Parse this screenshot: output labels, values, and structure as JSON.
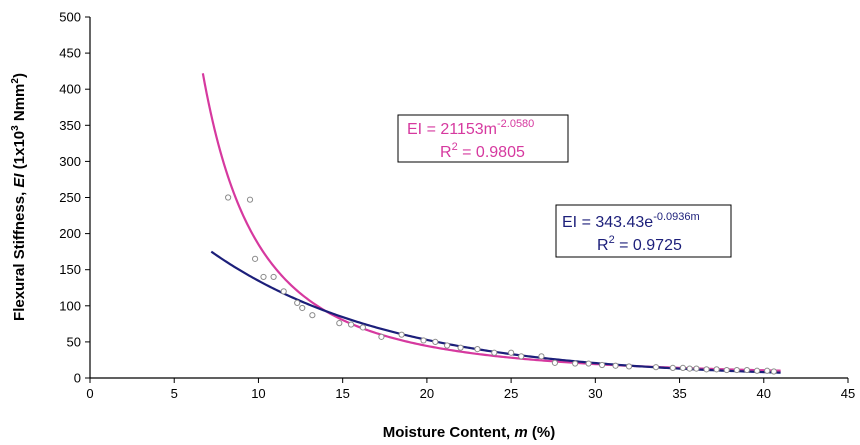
{
  "chart_data": {
    "type": "scatter",
    "xlim": [
      0,
      45
    ],
    "ylim": [
      0,
      500
    ],
    "x_ticks": [
      0,
      5,
      10,
      15,
      20,
      25,
      30,
      35,
      40,
      45
    ],
    "y_ticks": [
      0,
      50,
      100,
      150,
      200,
      250,
      300,
      350,
      400,
      450,
      500
    ],
    "grid": false,
    "xlabel": {
      "text": "Moisture Content, ",
      "italic": "m",
      "suffix": " (%)"
    },
    "ylabel": {
      "text": "Flexural Stiffness, ",
      "italic": "EI",
      "suffix_pre": " (1x10",
      "sup1": "3",
      "suffix_mid": " Nmm",
      "sup2": "2",
      "suffix_post": ")"
    },
    "points": {
      "x": [
        8.2,
        9.5,
        9.8,
        10.3,
        10.9,
        11.5,
        12.3,
        12.6,
        13.2,
        14.8,
        15.5,
        16.2,
        17.3,
        18.5,
        19.8,
        20.5,
        21.2,
        22.0,
        23.0,
        24.0,
        25.0,
        25.6,
        26.8,
        27.6,
        28.8,
        29.6,
        30.4,
        31.2,
        32.0,
        33.6,
        34.6,
        35.2,
        35.6,
        36.0,
        36.6,
        37.2,
        37.8,
        38.4,
        39.0,
        39.6,
        40.2,
        40.6
      ],
      "y": [
        250,
        247,
        165,
        140,
        140,
        120,
        104,
        97,
        87,
        76,
        74,
        70,
        57,
        60,
        52,
        50,
        45,
        42,
        40,
        35,
        35,
        30,
        30,
        21,
        20,
        20,
        18,
        17,
        16,
        15,
        14,
        14,
        13,
        13,
        12,
        12,
        11,
        11,
        11,
        10,
        10,
        9
      ],
      "marker": "open-circle",
      "color": "#8c8c8c"
    },
    "series": [
      {
        "kind": "power",
        "a": 21153,
        "b": -2.058,
        "x_range": [
          6.7,
          41
        ],
        "color": "#d6399f",
        "equation_base": "EI = 21153m",
        "equation_exp": "-2.0580",
        "r2_base": "R",
        "r2_sup": "2",
        "r2_rest": " = 0.9805"
      },
      {
        "kind": "exponential",
        "a": 343.43,
        "b": -0.0936,
        "x_range": [
          7.2,
          41
        ],
        "color": "#1c1f7a",
        "equation_base": "EI = 343.43e",
        "equation_exp": "-0.0936m",
        "r2_base": "R",
        "r2_sup": "2",
        "r2_rest": " = 0.9725"
      }
    ]
  }
}
